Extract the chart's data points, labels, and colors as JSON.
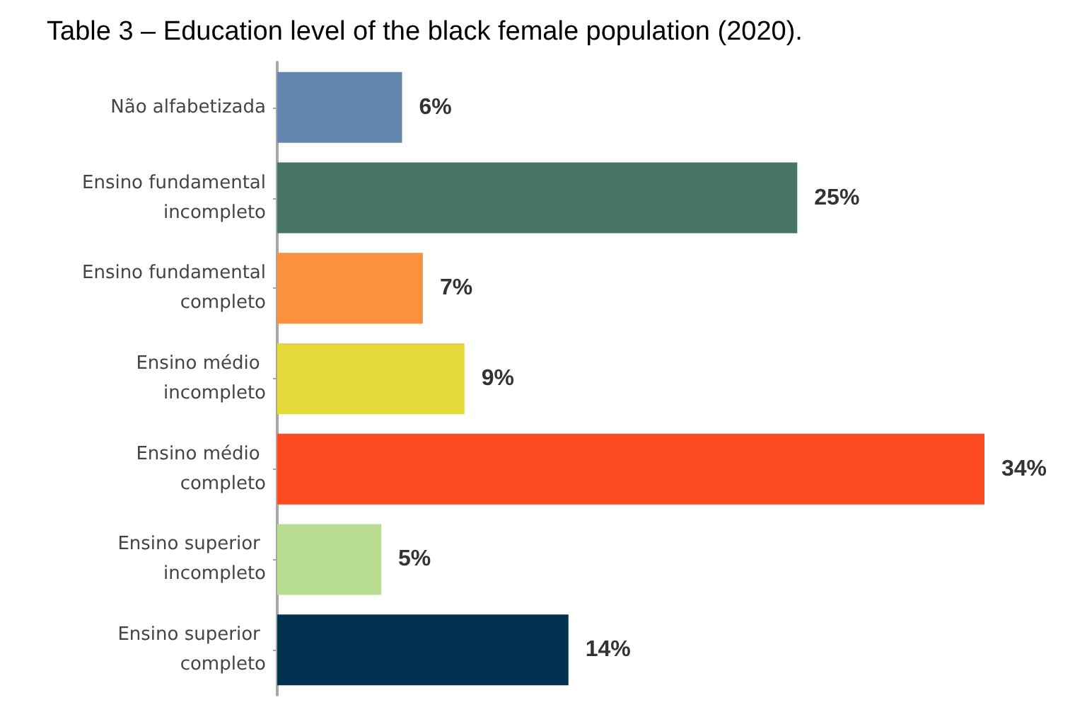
{
  "chart_data": {
    "type": "bar",
    "orientation": "horizontal",
    "title": "Table 3 – Education level of the black female population (2020).",
    "categories": [
      "Não alfabetizada",
      "Ensino fundamental incompleto",
      "Ensino fundamental completo",
      "Ensino médio incompleto",
      "Ensino médio completo",
      "Ensino superior incompleto",
      "Ensino superior completo"
    ],
    "values": [
      6,
      25,
      7,
      9,
      34,
      5,
      14
    ],
    "value_labels": [
      "6%",
      "25%",
      "7%",
      "9%",
      "34%",
      "5%",
      "14%"
    ],
    "colors": [
      "#6586b0",
      "#467563",
      "#fb913d",
      "#e4d83a",
      "#fe4a21",
      "#b8dd91",
      "#00314f"
    ]
  }
}
